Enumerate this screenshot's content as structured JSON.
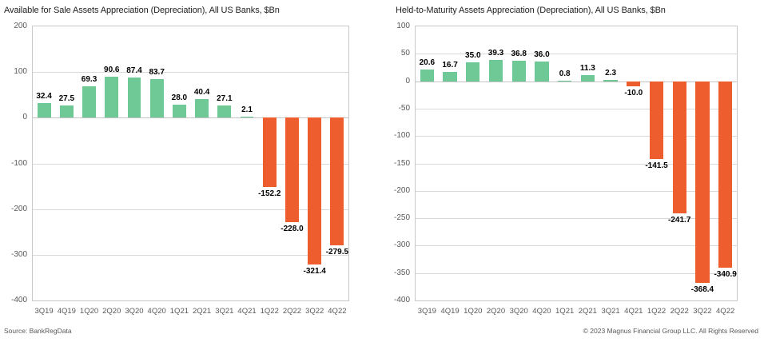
{
  "footer": {
    "source": "Source: BankRegData",
    "copyright": "© 2023 Magnus Financial Group LLC. All Rights Reserved"
  },
  "colors": {
    "positive_bar": "#6ec997",
    "negative_bar": "#ed5d2e",
    "gridline": "#d9d9d9",
    "zero_line": "#c4c4c4",
    "plot_border": "#c9c9c9",
    "axis_text": "#595959",
    "value_label": "#000000"
  },
  "chart_data": [
    {
      "type": "bar",
      "title": "Available for Sale Assets Appreciation (Depreciation), All US Banks, $Bn",
      "categories": [
        "3Q19",
        "4Q19",
        "1Q20",
        "2Q20",
        "3Q20",
        "4Q20",
        "1Q21",
        "2Q21",
        "3Q21",
        "4Q21",
        "1Q22",
        "2Q22",
        "3Q22",
        "4Q22"
      ],
      "values": [
        32.4,
        27.5,
        69.3,
        90.6,
        87.4,
        83.7,
        28.0,
        40.4,
        27.1,
        2.1,
        -152.2,
        -228.0,
        -321.4,
        -279.5
      ],
      "xlabel": "",
      "ylabel": "",
      "ylim": [
        -400,
        200
      ],
      "ytick_step": 100,
      "grid": true,
      "legend": "none",
      "value_label_format": "one-decimal"
    },
    {
      "type": "bar",
      "title": "Held-to-Maturity Assets Appreciation (Depreciation), All US Banks, $Bn",
      "categories": [
        "3Q19",
        "4Q19",
        "1Q20",
        "2Q20",
        "3Q20",
        "4Q20",
        "1Q21",
        "2Q21",
        "3Q21",
        "4Q21",
        "1Q22",
        "2Q22",
        "3Q22",
        "4Q22"
      ],
      "values": [
        20.6,
        16.7,
        35.0,
        39.3,
        36.8,
        36.0,
        0.8,
        11.3,
        2.3,
        -10.0,
        -141.5,
        -241.7,
        -368.4,
        -340.9
      ],
      "xlabel": "",
      "ylabel": "",
      "ylim": [
        -400,
        100
      ],
      "ytick_step": 50,
      "grid": true,
      "legend": "none",
      "value_label_format": "one-decimal"
    }
  ]
}
